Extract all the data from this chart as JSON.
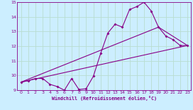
{
  "background_color": "#cceeff",
  "grid_color": "#b8ddd0",
  "line_color": "#880088",
  "xlim": [
    -0.5,
    23.5
  ],
  "ylim": [
    9,
    15
  ],
  "xlabel": "Windchill (Refroidissement éolien,°C)",
  "xticks": [
    0,
    1,
    2,
    3,
    4,
    5,
    6,
    7,
    8,
    9,
    10,
    11,
    12,
    13,
    14,
    15,
    16,
    17,
    18,
    19,
    20,
    21,
    22,
    23
  ],
  "yticks": [
    9,
    10,
    11,
    12,
    13,
    14,
    15
  ],
  "zigzag": {
    "x": [
      0,
      1,
      2,
      3,
      4,
      5,
      6,
      7,
      8,
      9,
      10,
      11,
      12,
      13,
      14,
      15,
      16,
      17,
      18,
      19,
      20,
      21,
      22,
      23
    ],
    "y": [
      9.55,
      9.65,
      9.8,
      9.8,
      9.4,
      9.25,
      9.0,
      9.8,
      9.05,
      9.1,
      9.95,
      11.5,
      12.9,
      13.5,
      13.3,
      14.5,
      14.7,
      15.0,
      14.4,
      13.3,
      12.7,
      12.45,
      12.05,
      12.05
    ]
  },
  "upper_line": {
    "x": [
      0,
      19,
      23
    ],
    "y": [
      9.55,
      13.3,
      12.05
    ]
  },
  "lower_line": {
    "x": [
      0,
      23
    ],
    "y": [
      9.55,
      12.05
    ]
  }
}
